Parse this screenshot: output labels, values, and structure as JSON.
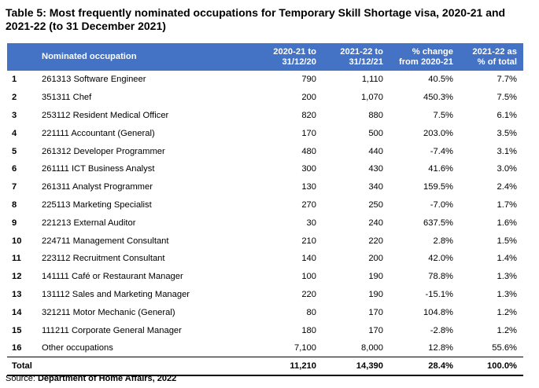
{
  "title": "Table 5: Most frequently nominated occupations for Temporary Skill Shortage visa, 2020-21 and 2021-22 (to 31 December 2021)",
  "table": {
    "headers": {
      "occupation": "Nominated occupation",
      "col1_line1": "2020-21 to",
      "col1_line2": "31/12/20",
      "col2_line1": "2021-22 to",
      "col2_line2": "31/12/21",
      "col3_line1": "% change",
      "col3_line2": "from 2020-21",
      "col4_line1": "2021-22 as",
      "col4_line2": "% of total"
    },
    "rows": [
      {
        "idx": "1",
        "occupation": "261313 Software Engineer",
        "v2020": "790",
        "v2021": "1,110",
        "change": "40.5%",
        "share": "7.7%"
      },
      {
        "idx": "2",
        "occupation": "351311 Chef",
        "v2020": "200",
        "v2021": "1,070",
        "change": "450.3%",
        "share": "7.5%"
      },
      {
        "idx": "3",
        "occupation": "253112 Resident Medical Officer",
        "v2020": "820",
        "v2021": "880",
        "change": "7.5%",
        "share": "6.1%"
      },
      {
        "idx": "4",
        "occupation": "221111 Accountant (General)",
        "v2020": "170",
        "v2021": "500",
        "change": "203.0%",
        "share": "3.5%"
      },
      {
        "idx": "5",
        "occupation": "261312 Developer Programmer",
        "v2020": "480",
        "v2021": "440",
        "change": "-7.4%",
        "share": "3.1%"
      },
      {
        "idx": "6",
        "occupation": "261111 ICT Business Analyst",
        "v2020": "300",
        "v2021": "430",
        "change": "41.6%",
        "share": "3.0%"
      },
      {
        "idx": "7",
        "occupation": "261311 Analyst Programmer",
        "v2020": "130",
        "v2021": "340",
        "change": "159.5%",
        "share": "2.4%"
      },
      {
        "idx": "8",
        "occupation": "225113 Marketing Specialist",
        "v2020": "270",
        "v2021": "250",
        "change": "-7.0%",
        "share": "1.7%"
      },
      {
        "idx": "9",
        "occupation": "221213 External Auditor",
        "v2020": "30",
        "v2021": "240",
        "change": "637.5%",
        "share": "1.6%"
      },
      {
        "idx": "10",
        "occupation": "224711 Management Consultant",
        "v2020": "210",
        "v2021": "220",
        "change": "2.8%",
        "share": "1.5%"
      },
      {
        "idx": "11",
        "occupation": "223112 Recruitment Consultant",
        "v2020": "140",
        "v2021": "200",
        "change": "42.0%",
        "share": "1.4%"
      },
      {
        "idx": "12",
        "occupation": "141111 Café or Restaurant Manager",
        "v2020": "100",
        "v2021": "190",
        "change": "78.8%",
        "share": "1.3%"
      },
      {
        "idx": "13",
        "occupation": "131112 Sales and Marketing Manager",
        "v2020": "220",
        "v2021": "190",
        "change": "-15.1%",
        "share": "1.3%"
      },
      {
        "idx": "14",
        "occupation": "321211 Motor Mechanic (General)",
        "v2020": "80",
        "v2021": "170",
        "change": "104.8%",
        "share": "1.2%"
      },
      {
        "idx": "15",
        "occupation": "111211 Corporate General Manager",
        "v2020": "180",
        "v2021": "170",
        "change": "-2.8%",
        "share": "1.2%"
      },
      {
        "idx": "16",
        "occupation": "Other occupations",
        "v2020": "7,100",
        "v2021": "8,000",
        "change": "12.8%",
        "share": "55.6%"
      }
    ],
    "total": {
      "label": "Total",
      "v2020": "11,210",
      "v2021": "14,390",
      "change": "28.4%",
      "share": "100.0%"
    }
  },
  "source": {
    "prefix": "Source:",
    "name": "Department of Home Affairs, 2022"
  },
  "colors": {
    "header_bg": "#4472c4",
    "header_text": "#ffffff"
  }
}
